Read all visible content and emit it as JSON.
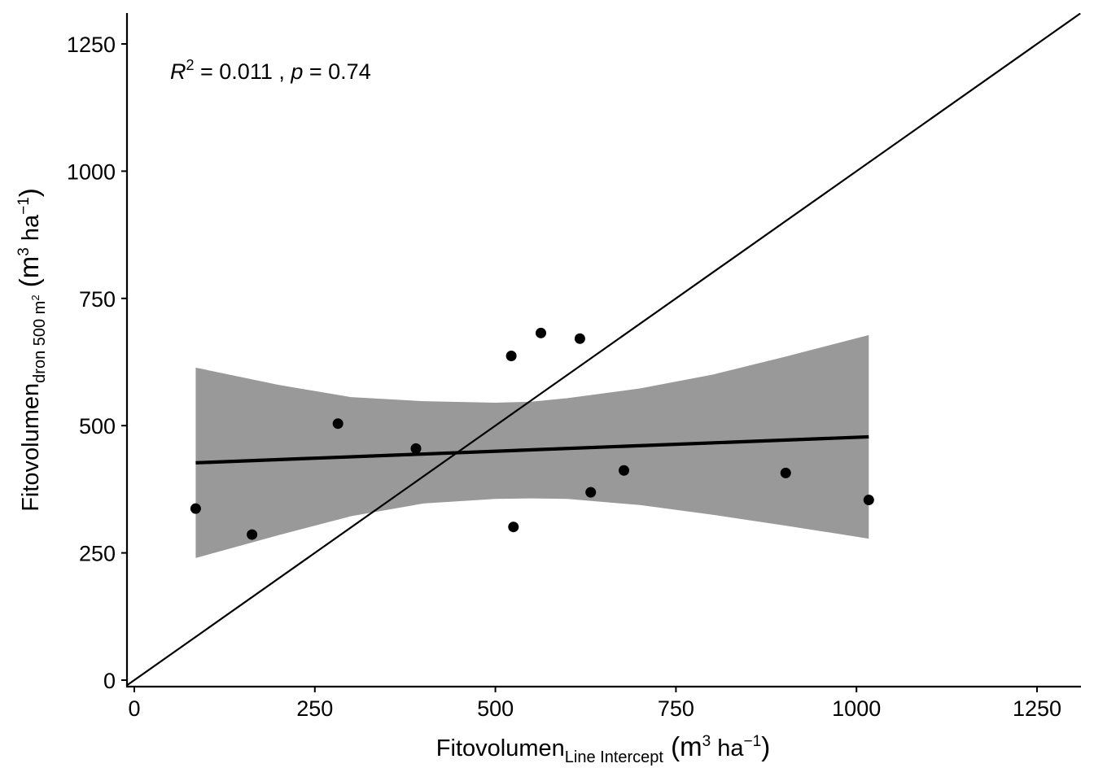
{
  "chart_data": {
    "type": "scatter",
    "title": "",
    "annotation": {
      "r2_symbol": "R",
      "r2_exp": "2",
      "r2_rest": " = 0.011 , ",
      "p_symbol": "p",
      "p_rest": " = 0.74"
    },
    "xlabel": {
      "main": "Fitovolumen",
      "sub": "Line Intercept",
      "unit_open": " (m",
      "unit_exp": "3",
      "unit_mid": " ha",
      "unit_exp2": "−1",
      "unit_close": ")"
    },
    "ylabel": {
      "main": "Fitovolumen",
      "sub": "dron 500 m",
      "sub_exp": "2",
      "unit_open": " (m",
      "unit_exp": "3",
      "unit_mid": " ha",
      "unit_exp2": "−1",
      "unit_close": ")"
    },
    "xlim": [
      -10,
      1310
    ],
    "ylim": [
      -10,
      1310
    ],
    "xticks": [
      0,
      250,
      500,
      750,
      1000,
      1250
    ],
    "yticks": [
      0,
      250,
      500,
      750,
      1000,
      1250
    ],
    "grid": false,
    "points": [
      {
        "x": 85,
        "y": 337
      },
      {
        "x": 163,
        "y": 286
      },
      {
        "x": 282,
        "y": 504
      },
      {
        "x": 390,
        "y": 455
      },
      {
        "x": 522,
        "y": 637
      },
      {
        "x": 525,
        "y": 301
      },
      {
        "x": 563,
        "y": 682
      },
      {
        "x": 617,
        "y": 671
      },
      {
        "x": 632,
        "y": 369
      },
      {
        "x": 678,
        "y": 412
      },
      {
        "x": 902,
        "y": 407
      },
      {
        "x": 1017,
        "y": 354
      }
    ],
    "regression": {
      "x": [
        85,
        1017
      ],
      "y": [
        427,
        478
      ]
    },
    "confidence_band": {
      "x": [
        85,
        200,
        300,
        400,
        500,
        550,
        600,
        700,
        800,
        900,
        1017
      ],
      "upper": [
        614,
        580,
        556,
        548,
        545,
        547,
        554,
        573,
        600,
        635,
        678
      ],
      "lower": [
        240,
        285,
        322,
        347,
        356,
        357,
        356,
        344,
        325,
        304,
        278
      ]
    },
    "reference_line": {
      "slope": 1,
      "intercept": 0
    },
    "colors": {
      "points": "#000000",
      "regression": "#000000",
      "band": "#999999",
      "reference": "#000000"
    }
  }
}
